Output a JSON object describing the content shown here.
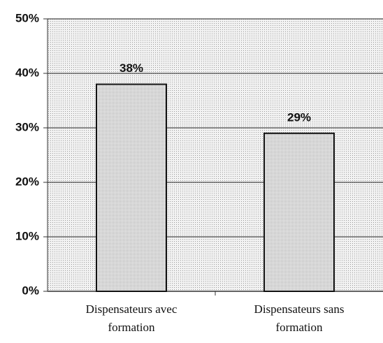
{
  "chart_data": {
    "type": "bar",
    "categories": [
      "Dispensateurs avec formation",
      "Dispensateurs sans formation"
    ],
    "values": [
      38,
      29
    ],
    "value_labels": [
      "38%",
      "29%"
    ],
    "color": "#dcdcdc",
    "ylim": [
      0,
      50
    ],
    "yticks": [
      {
        "value": 0,
        "label": "0%"
      },
      {
        "value": 10,
        "label": "10%"
      },
      {
        "value": 20,
        "label": "20%"
      },
      {
        "value": 30,
        "label": "30%"
      },
      {
        "value": 40,
        "label": "40%"
      },
      {
        "value": 50,
        "label": "50%"
      }
    ],
    "grid": true
  }
}
